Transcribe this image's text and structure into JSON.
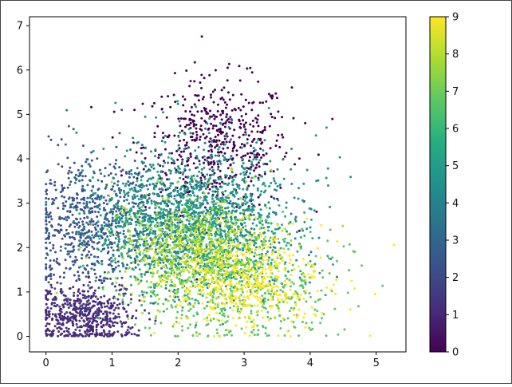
{
  "chart_data": {
    "type": "scatter",
    "title": "",
    "xlabel": "",
    "ylabel": "",
    "xlim": [
      -0.25,
      5.45
    ],
    "ylim": [
      -0.35,
      7.2
    ],
    "xticks": [
      "0",
      "1",
      "2",
      "3",
      "4",
      "5"
    ],
    "yticks": [
      "0",
      "1",
      "2",
      "3",
      "4",
      "5",
      "6",
      "7"
    ],
    "grid": false,
    "legend": "none",
    "colorbar": {
      "label": "",
      "range": [
        0,
        9
      ],
      "ticks": [
        "0",
        "1",
        "2",
        "3",
        "4",
        "5",
        "6",
        "7",
        "8",
        "9"
      ],
      "colormap": "viridis"
    },
    "point_color_stops": [
      "#440154",
      "#472c7a",
      "#3b518b",
      "#2c718e",
      "#21908d",
      "#27ad81",
      "#5cc863",
      "#aadc32",
      "#fde725"
    ],
    "clusters": [
      {
        "value": 0,
        "center": [
          2.6,
          4.3
        ],
        "spread": [
          0.55,
          0.75
        ]
      },
      {
        "value": 1,
        "center": [
          0.55,
          0.45
        ],
        "spread": [
          0.4,
          0.35
        ]
      },
      {
        "value": 2,
        "center": [
          0.6,
          2.5
        ],
        "spread": [
          0.45,
          0.8
        ]
      },
      {
        "value": 3,
        "center": [
          1.7,
          2.6
        ],
        "spread": [
          0.7,
          0.7
        ]
      },
      {
        "value": 4,
        "center": [
          2.2,
          2.4
        ],
        "spread": [
          0.75,
          0.7
        ]
      },
      {
        "value": 5,
        "center": [
          2.5,
          3.0
        ],
        "spread": [
          0.7,
          0.8
        ]
      },
      {
        "value": 6,
        "center": [
          2.3,
          2.2
        ],
        "spread": [
          0.7,
          0.7
        ]
      },
      {
        "value": 7,
        "center": [
          2.9,
          1.1
        ],
        "spread": [
          0.7,
          0.6
        ]
      },
      {
        "value": 8,
        "center": [
          2.2,
          2.0
        ],
        "spread": [
          0.6,
          0.6
        ]
      },
      {
        "value": 9,
        "center": [
          3.0,
          1.3
        ],
        "spread": [
          0.6,
          0.6
        ]
      }
    ]
  }
}
